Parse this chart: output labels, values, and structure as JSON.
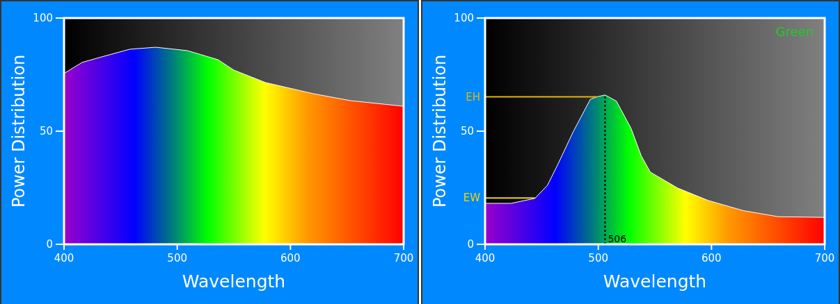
{
  "chart_data": [
    {
      "type": "area",
      "xlabel": "Wavelength",
      "ylabel": "Power Distribution",
      "xlim": [
        400,
        700
      ],
      "ylim": [
        0,
        100
      ],
      "xticks": [
        400,
        500,
        600,
        700
      ],
      "yticks": [
        0,
        50,
        100
      ],
      "series": [
        {
          "x": [
            400,
            416,
            433,
            458,
            481,
            509,
            536,
            550,
            578,
            620,
            653,
            700
          ],
          "values": [
            75.5,
            80.4,
            82.8,
            86.2,
            87.1,
            85.6,
            81.6,
            77,
            71.5,
            66.6,
            63.5,
            61
          ]
        }
      ]
    },
    {
      "type": "area",
      "xlabel": "Wavelength",
      "ylabel": "Power Distribution",
      "xlim": [
        400,
        700
      ],
      "ylim": [
        0,
        100
      ],
      "xticks": [
        400,
        500,
        600,
        700
      ],
      "yticks": [
        0,
        50,
        100
      ],
      "annotations": [
        "Green"
      ],
      "series": [
        {
          "x": [
            400,
            423,
            444,
            455,
            464,
            478,
            493,
            499,
            506,
            516,
            529,
            538,
            546,
            570,
            597,
            628,
            659,
            700
          ],
          "values": [
            18.1,
            18.1,
            20.3,
            26,
            35,
            49.9,
            64.1,
            65.2,
            66,
            63.3,
            51.2,
            39.1,
            31.9,
            24.9,
            19.4,
            14.9,
            12.2,
            11.9
          ]
        }
      ],
      "ref_lines": [
        {
          "axis": "y",
          "value": 65.2,
          "label": "EH",
          "color": "#e6b800"
        },
        {
          "axis": "y",
          "value": 20.5,
          "label": "EW",
          "color": "#f2d600"
        },
        {
          "axis": "x",
          "value": 506,
          "label": "506",
          "color": "#000000",
          "line_style": "dashed"
        }
      ]
    }
  ]
}
